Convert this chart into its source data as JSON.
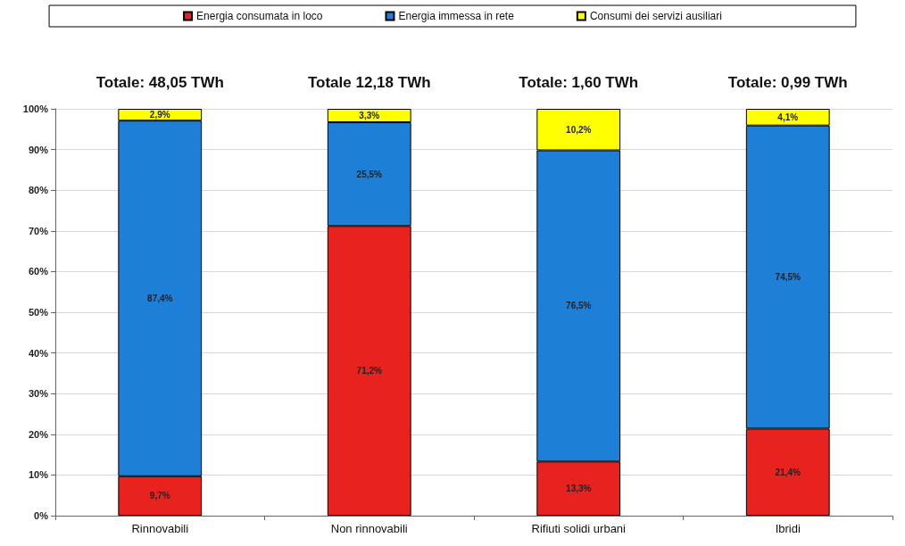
{
  "chart_data": {
    "type": "bar",
    "stacked": true,
    "categories": [
      "Rinnovabili",
      "Non rinnovabili",
      "Rifiuti solidi urbani",
      "Ibridi"
    ],
    "series": [
      {
        "name": "Energia consumata in loco",
        "color": "#e8231f",
        "values": [
          9.7,
          71.2,
          13.3,
          21.4
        ],
        "value_labels": [
          "9,7%",
          "71,2%",
          "13,3%",
          "21,4%"
        ]
      },
      {
        "name": "Energia immessa in rete",
        "color": "#1e7fd6",
        "values": [
          87.4,
          25.5,
          76.5,
          74.5
        ],
        "value_labels": [
          "87,4%",
          "25,5%",
          "76,5%",
          "74,5%"
        ]
      },
      {
        "name": "Consumi dei servizi ausiliari",
        "color": "#ffff00",
        "values": [
          2.9,
          3.3,
          10.2,
          4.1
        ],
        "value_labels": [
          "2,9%",
          "3,3%",
          "10,2%",
          "4,1%"
        ]
      }
    ],
    "annotations": [
      "Totale: 48,05 TWh",
      "Totale 12,18 TWh",
      "Totale: 1,60 TWh",
      "Totale: 0,99 TWh"
    ],
    "ylim": [
      0,
      100
    ],
    "yticks": [
      {
        "value": 0,
        "label": "0%"
      },
      {
        "value": 10,
        "label": "10%"
      },
      {
        "value": 20,
        "label": "20%"
      },
      {
        "value": 30,
        "label": "30%"
      },
      {
        "value": 40,
        "label": "40%"
      },
      {
        "value": 50,
        "label": "50%"
      },
      {
        "value": 60,
        "label": "60%"
      },
      {
        "value": 70,
        "label": "70%"
      },
      {
        "value": 80,
        "label": "80%"
      },
      {
        "value": 90,
        "label": "90%"
      },
      {
        "value": 100,
        "label": "100%"
      }
    ],
    "grid": "y",
    "legend": "top"
  }
}
